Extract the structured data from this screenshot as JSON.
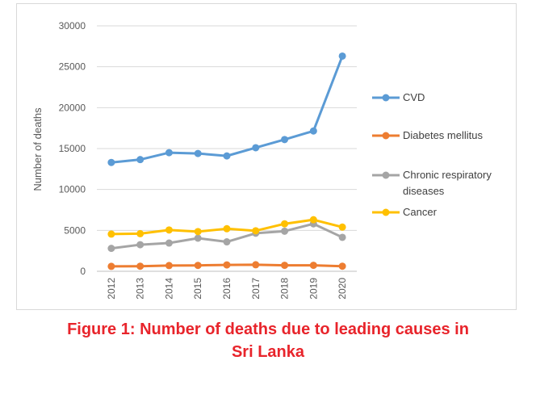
{
  "chart_data": {
    "type": "line",
    "ylabel": "Number of deaths",
    "xlabel": "",
    "ylim": [
      0,
      30000
    ],
    "yticks": [
      0,
      5000,
      10000,
      15000,
      20000,
      25000,
      30000
    ],
    "categories": [
      "2012",
      "2013",
      "2014",
      "2015",
      "2016",
      "2017",
      "2018",
      "2019",
      "2020"
    ],
    "grid": true,
    "legend_position": "right",
    "series": [
      {
        "name": "CVD",
        "color": "#5b9bd5",
        "values": [
          13300,
          13650,
          14500,
          14400,
          14100,
          15100,
          16100,
          17150,
          26300
        ]
      },
      {
        "name": "Diabetes mellitus",
        "color": "#ed7d31",
        "values": [
          600,
          620,
          700,
          720,
          780,
          800,
          730,
          730,
          620
        ]
      },
      {
        "name": "Chronic respiratory diseases",
        "legend_lines": [
          "Chronic respiratory",
          "diseases"
        ],
        "color": "#a5a5a5",
        "values": [
          2800,
          3250,
          3450,
          4050,
          3600,
          4650,
          4900,
          5800,
          4150
        ]
      },
      {
        "name": "Cancer",
        "color": "#ffc000",
        "values": [
          4550,
          4600,
          5050,
          4850,
          5200,
          4950,
          5800,
          6300,
          5400
        ]
      }
    ]
  },
  "caption": {
    "line1": "Figure 1: Number of deaths due to leading causes in",
    "line2": "Sri Lanka"
  }
}
